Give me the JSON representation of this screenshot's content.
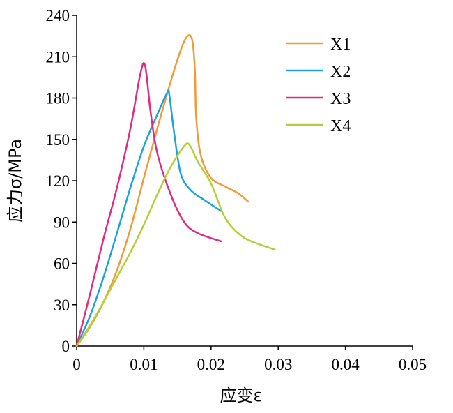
{
  "chart_data": {
    "type": "line",
    "xlabel": "应变ε",
    "ylabel": "应力σ/MPa",
    "xlim": [
      0,
      0.05
    ],
    "ylim": [
      0,
      240
    ],
    "x_ticks": [
      "0",
      "0.01",
      "0.02",
      "0.03",
      "0.04",
      "0.05"
    ],
    "y_ticks": [
      "0",
      "30",
      "60",
      "90",
      "120",
      "150",
      "180",
      "210",
      "240"
    ],
    "grid": false,
    "legend_position": "top-right",
    "series": [
      {
        "name": "X1",
        "color": "#F39A36",
        "points": [
          [
            0,
            0
          ],
          [
            0.002,
            14
          ],
          [
            0.004,
            32
          ],
          [
            0.006,
            55
          ],
          [
            0.008,
            85
          ],
          [
            0.01,
            122
          ],
          [
            0.012,
            158
          ],
          [
            0.014,
            192
          ],
          [
            0.0155,
            215
          ],
          [
            0.0165,
            225
          ],
          [
            0.0172,
            222
          ],
          [
            0.0176,
            200
          ],
          [
            0.0178,
            165
          ],
          [
            0.0185,
            138
          ],
          [
            0.02,
            122
          ],
          [
            0.022,
            116
          ],
          [
            0.024,
            111
          ],
          [
            0.0255,
            105
          ]
        ]
      },
      {
        "name": "X2",
        "color": "#1BA3E0",
        "points": [
          [
            0,
            0
          ],
          [
            0.002,
            22
          ],
          [
            0.004,
            50
          ],
          [
            0.006,
            82
          ],
          [
            0.008,
            115
          ],
          [
            0.01,
            145
          ],
          [
            0.012,
            168
          ],
          [
            0.0135,
            184
          ],
          [
            0.0138,
            182
          ],
          [
            0.0145,
            155
          ],
          [
            0.0155,
            125
          ],
          [
            0.017,
            113
          ],
          [
            0.019,
            106
          ],
          [
            0.0215,
            98
          ]
        ]
      },
      {
        "name": "X3",
        "color": "#E02B7E",
        "points": [
          [
            0,
            0
          ],
          [
            0.002,
            38
          ],
          [
            0.004,
            78
          ],
          [
            0.006,
            115
          ],
          [
            0.008,
            158
          ],
          [
            0.0095,
            198
          ],
          [
            0.0102,
            203
          ],
          [
            0.011,
            170
          ],
          [
            0.012,
            140
          ],
          [
            0.014,
            110
          ],
          [
            0.016,
            90
          ],
          [
            0.018,
            82
          ],
          [
            0.0215,
            76
          ]
        ]
      },
      {
        "name": "X4",
        "color": "#B4CF38",
        "points": [
          [
            0,
            0
          ],
          [
            0.002,
            15
          ],
          [
            0.004,
            32
          ],
          [
            0.006,
            50
          ],
          [
            0.008,
            68
          ],
          [
            0.01,
            88
          ],
          [
            0.012,
            110
          ],
          [
            0.014,
            130
          ],
          [
            0.016,
            145
          ],
          [
            0.0168,
            146
          ],
          [
            0.018,
            134
          ],
          [
            0.02,
            118
          ],
          [
            0.022,
            94
          ],
          [
            0.024,
            82
          ],
          [
            0.026,
            76
          ],
          [
            0.0295,
            70
          ]
        ]
      }
    ]
  }
}
